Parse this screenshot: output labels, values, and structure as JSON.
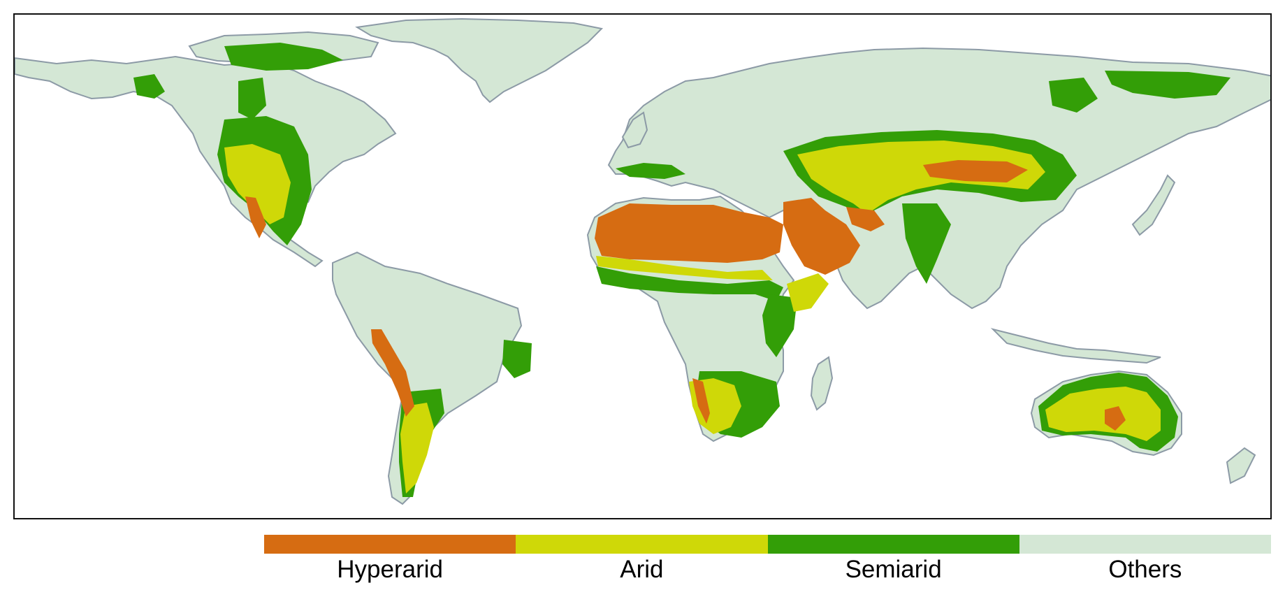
{
  "map": {
    "colors": {
      "hyperarid": "#d66c12",
      "arid": "#cfd808",
      "semiarid": "#339e07",
      "others": "#d4e7d5",
      "coastline": "#8c9aa6",
      "frame": "#111111"
    }
  },
  "legend": {
    "items": [
      {
        "label": "Hyperarid",
        "color": "#d66c12"
      },
      {
        "label": "Arid",
        "color": "#cfd808"
      },
      {
        "label": "Semiarid",
        "color": "#339e07"
      },
      {
        "label": "Others",
        "color": "#d4e7d5"
      }
    ]
  }
}
